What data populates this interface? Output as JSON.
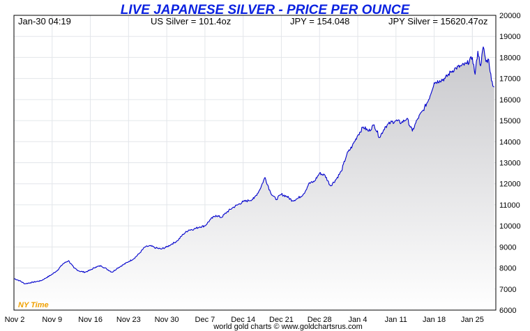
{
  "colors": {
    "title": "#0b22e0",
    "line": "#0000cc",
    "fill_top": "#c8c8cc",
    "fill_bottom": "#ffffff",
    "grid": "#e3e6ea",
    "frame": "#000000",
    "timezone": "#f0a000"
  },
  "chart_data": {
    "type": "line",
    "title": "LIVE JAPANESE SILVER - PRICE PER OUNCE",
    "header": {
      "datetime": "Jan-30  04:19",
      "us_silver": "US Silver = 101.4oz",
      "jpy": "JPY = 154.048",
      "jpy_silver": "JPY Silver = 15620.47oz"
    },
    "timezone_label": "NY Time",
    "source": "world gold charts © www.goldchartsrus.com",
    "x_tick_labels": [
      "Nov 2",
      "Nov 9",
      "Nov 16",
      "Nov 23",
      "Nov 30",
      "Dec 7",
      "Dec 14",
      "Dec 21",
      "Dec 28",
      "Jan 4",
      "Jan 11",
      "Jan 18",
      "Jan 25"
    ],
    "y_ticks": [
      6000,
      7000,
      8000,
      9000,
      10000,
      11000,
      12000,
      13000,
      14000,
      15000,
      16000,
      17000,
      18000,
      19000,
      20000
    ],
    "ylim": [
      6000,
      20000
    ],
    "xlim": [
      0,
      88.3
    ],
    "x_unit": "days since Nov 2",
    "series": [
      {
        "name": "JPY Silver",
        "x": [
          0,
          1,
          2,
          3,
          4,
          5,
          6,
          7,
          8,
          9,
          10,
          11,
          12,
          13,
          14,
          15,
          16,
          17,
          18,
          19,
          20,
          21,
          22,
          23,
          24,
          25,
          26,
          27,
          28,
          29,
          30,
          31,
          32,
          33,
          34,
          35,
          36,
          37,
          38,
          39,
          40,
          41,
          42,
          43,
          44,
          45,
          46,
          47,
          48,
          49,
          50,
          51,
          52,
          53,
          53.5,
          54,
          55,
          56,
          57,
          58,
          59,
          60,
          61,
          62,
          63,
          64,
          65,
          66,
          67,
          68,
          69,
          70,
          71,
          72,
          73,
          74,
          75,
          76,
          77,
          78,
          79,
          80,
          81,
          82,
          83,
          84,
          84.5,
          85,
          85.5,
          86,
          86.5,
          87,
          87.5,
          88
        ],
        "values": [
          7500,
          7400,
          7250,
          7300,
          7350,
          7400,
          7550,
          7700,
          7900,
          8200,
          8350,
          8000,
          7850,
          7800,
          7900,
          8050,
          8100,
          7950,
          7800,
          8000,
          8150,
          8300,
          8450,
          8700,
          9000,
          9050,
          8950,
          8900,
          9000,
          9150,
          9300,
          9600,
          9800,
          9850,
          9950,
          10000,
          10300,
          10500,
          10400,
          10650,
          10850,
          11000,
          11150,
          11200,
          11300,
          11700,
          12300,
          11600,
          11250,
          11500,
          11400,
          11200,
          11300,
          11500,
          11700,
          12000,
          12100,
          12500,
          12400,
          11900,
          12200,
          12600,
          13400,
          13800,
          14300,
          14700,
          14500,
          14800,
          14200,
          14700,
          14900,
          15000,
          14900,
          15100,
          14500,
          15100,
          15500,
          16000,
          16800,
          16900,
          17000,
          17300,
          17500,
          17600,
          17700,
          18000,
          17200,
          18300,
          17600,
          18500,
          17800,
          17900,
          16900,
          16600
        ]
      }
    ]
  }
}
